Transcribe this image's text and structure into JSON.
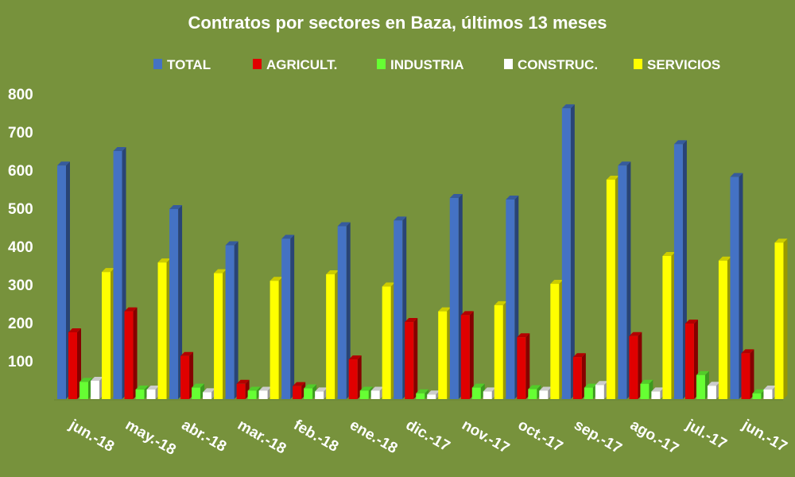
{
  "chart_data": {
    "type": "bar",
    "title": "Contratos por sectores en Baza, últimos 13 meses",
    "xlabel": "",
    "ylabel": "",
    "ylim": [
      0,
      800
    ],
    "yticks": [
      100,
      200,
      300,
      400,
      500,
      600,
      700,
      800
    ],
    "grid": false,
    "legend_position": "top",
    "categories": [
      "jun.-18",
      "may.-18",
      "abr.-18",
      "mar.-18",
      "feb.-18",
      "ene.-18",
      "dic.-17",
      "nov.-17",
      "oct.-17",
      "sep.-17",
      "ago.-17",
      "jul.-17",
      "jun.-17"
    ],
    "series": [
      {
        "name": "TOTAL",
        "color": "#4472c4",
        "values": [
          612,
          650,
          498,
          403,
          420,
          453,
          468,
          527,
          523,
          762,
          612,
          668,
          582
        ]
      },
      {
        "name": "AGRICULT.",
        "color": "#e00000",
        "values": [
          175,
          230,
          113,
          40,
          34,
          104,
          202,
          220,
          162,
          110,
          165,
          198,
          120
        ]
      },
      {
        "name": "INDUSTRIA",
        "color": "#66ff33",
        "values": [
          45,
          25,
          30,
          22,
          28,
          22,
          15,
          30,
          26,
          30,
          40,
          63,
          15
        ]
      },
      {
        "name": "CONSTRUC.",
        "color": "#ffffff",
        "values": [
          48,
          25,
          18,
          22,
          20,
          22,
          12,
          20,
          22,
          37,
          20,
          35,
          25
        ]
      },
      {
        "name": "SERVICIOS",
        "color": "#ffff00",
        "values": [
          333,
          358,
          330,
          310,
          327,
          295,
          230,
          246,
          302,
          575,
          375,
          363,
          410
        ]
      }
    ]
  }
}
